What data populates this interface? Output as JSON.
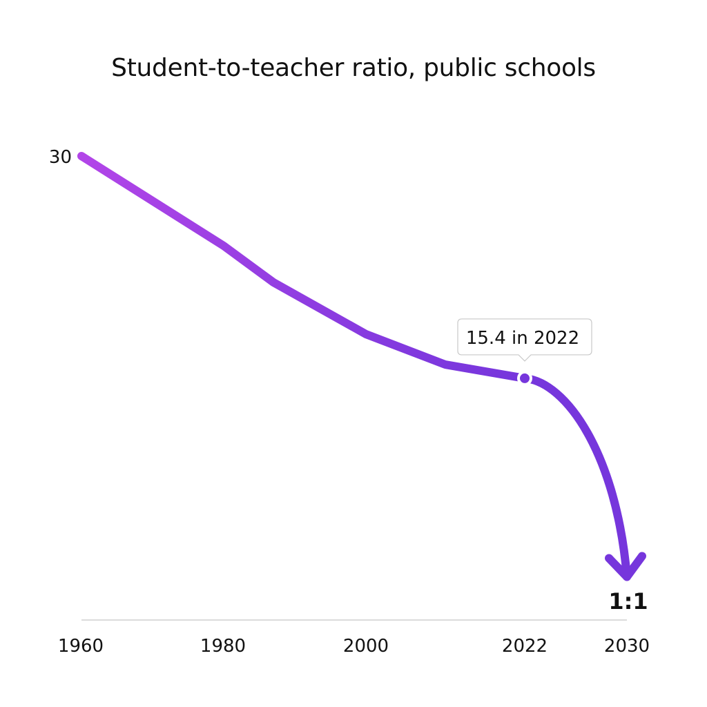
{
  "chart_data": {
    "type": "line",
    "title": "Student-to-teacher ratio, public schools",
    "xlabel": "",
    "ylabel": "",
    "x_ticks": [
      "1960",
      "1980",
      "2000",
      "2022",
      "2030"
    ],
    "y_tick_label": "30",
    "series": [
      {
        "x": [
          1960,
          1980,
          1987,
          2000,
          2011,
          2022
        ],
        "y": [
          30,
          24.1,
          21.7,
          18.3,
          16.3,
          15.4
        ]
      }
    ],
    "projection": {
      "x": [
        2022,
        2030
      ],
      "y": [
        15.4,
        1
      ]
    },
    "annotation": {
      "text": "15.4 in 2022",
      "x": 2022,
      "y": 15.4
    },
    "end_label": "1:1",
    "ylim": [
      0,
      30
    ],
    "grid": false,
    "colors": {
      "line_start": "#b245e8",
      "line_end": "#7636dc",
      "axis": "#cfcfcf"
    }
  }
}
